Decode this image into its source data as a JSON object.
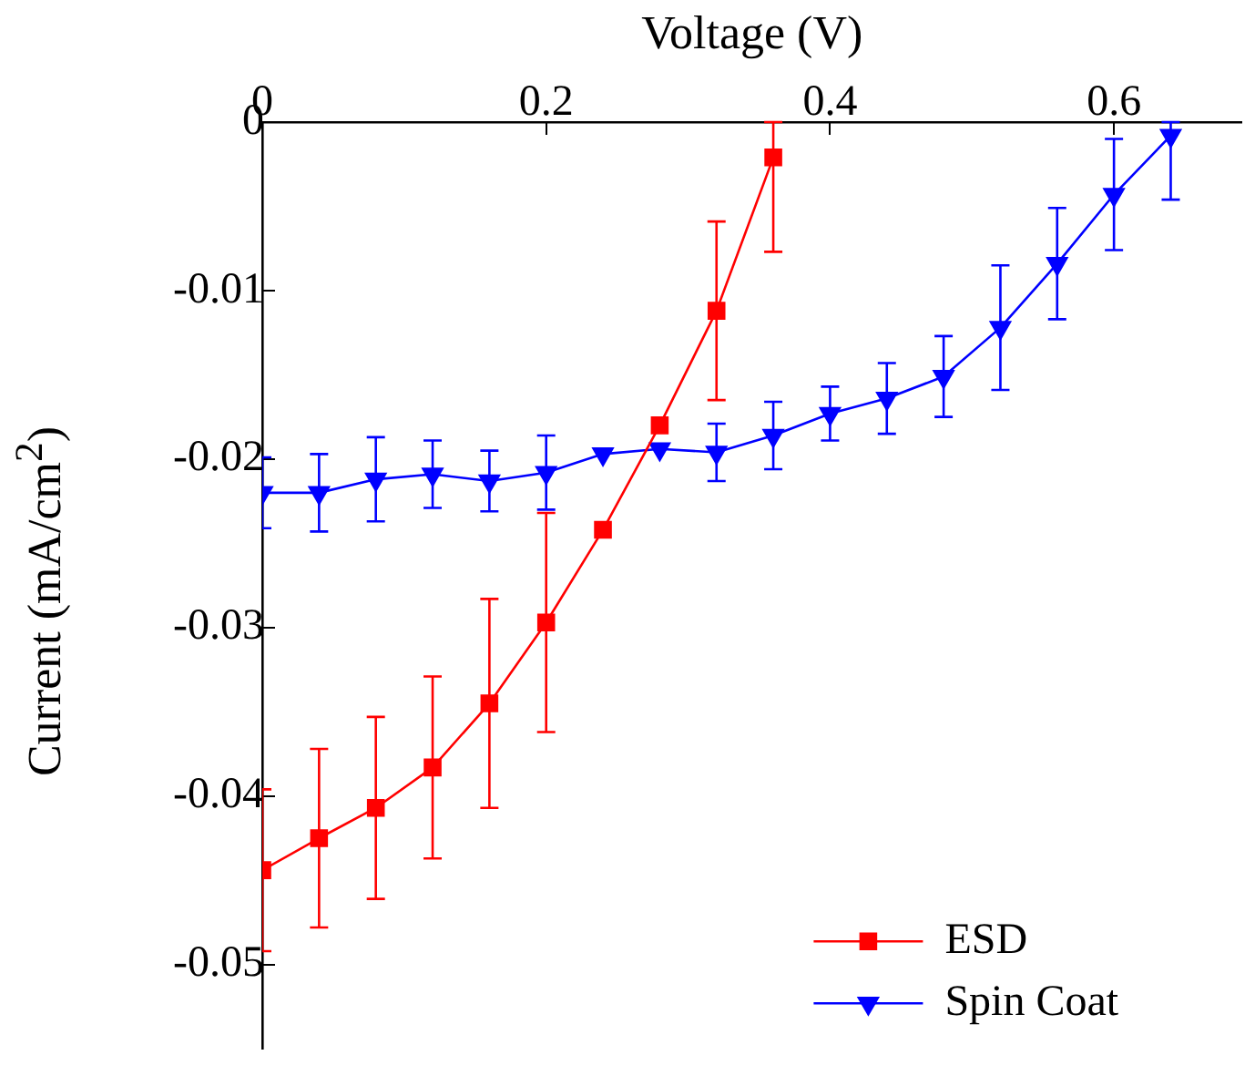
{
  "chart_data": {
    "type": "line",
    "xlabel": "Voltage (V)",
    "ylabel": "Current (mA/cm$^{2}$)",
    "xlim": [
      0,
      0.69
    ],
    "xticks": [
      0,
      0.2,
      0.4,
      0.6
    ],
    "ylim": [
      -0.055,
      0
    ],
    "yticks": [
      0,
      -0.01,
      -0.02,
      -0.03,
      -0.04,
      -0.05
    ],
    "grid": false,
    "legend": "bottom right",
    "line_style": "solid",
    "series": [
      {
        "name": "ESD",
        "color": "#ff0000",
        "marker": "square",
        "x": [
          0,
          0.04,
          0.08,
          0.12,
          0.16,
          0.2,
          0.24,
          0.28,
          0.32,
          0.36
        ],
        "values": [
          -0.0444,
          -0.0425,
          -0.0407,
          -0.0383,
          -0.0345,
          -0.0297,
          -0.0242,
          -0.018,
          -0.0112,
          -0.0021
        ],
        "errors": [
          0.0048,
          0.0053,
          0.0054,
          0.0054,
          0.0062,
          0.0065,
          null,
          null,
          0.0053,
          [
            -0.0077,
            0
          ]
        ]
      },
      {
        "name": "Spin Coat",
        "color": "#0000ff",
        "marker": "triangle",
        "x": [
          0,
          0.04,
          0.08,
          0.12,
          0.16,
          0.2,
          0.24,
          0.28,
          0.32,
          0.36,
          0.4,
          0.44,
          0.48,
          0.52,
          0.56,
          0.6,
          0.64
        ],
        "values": [
          -0.022,
          -0.022,
          -0.0212,
          -0.0209,
          -0.0213,
          -0.0208,
          -0.0197,
          -0.0194,
          -0.0196,
          -0.0186,
          -0.0173,
          -0.0164,
          -0.0151,
          -0.0122,
          -0.0084,
          -0.0043,
          -0.0008
        ],
        "errors": [
          0.0021,
          0.0023,
          0.0025,
          0.002,
          0.0018,
          0.0022,
          null,
          null,
          0.0017,
          0.002,
          0.0016,
          0.0021,
          0.0024,
          0.0037,
          0.0033,
          0.0033,
          [
            -0.0046,
            0
          ]
        ]
      }
    ]
  }
}
